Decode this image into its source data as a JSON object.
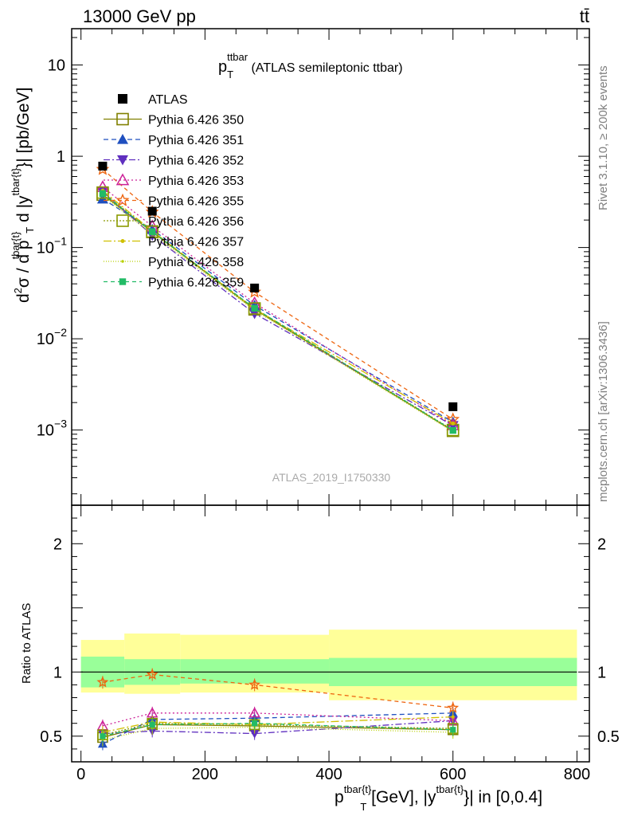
{
  "header": {
    "left": "13000 GeV pp",
    "right": "tt̄"
  },
  "side_labels": {
    "rivet": "Rivet 3.1.10, ≥ 200k events",
    "mcplots": "mcplots.cern.ch [arXiv:1306.3436]"
  },
  "title": {
    "main": "p",
    "sub": "T",
    "sup": "ttbar",
    "rest": " (ATLAS semileptonic ttbar)"
  },
  "watermark": "ATLAS_2019_I1750330",
  "ylabel_main": {
    "a": "d",
    "a_sup": "2",
    "b": "σ / d p",
    "b_sup": "tbar{t}",
    "b_sub": "T",
    "c": " d |y",
    "c_sup": "tbar{t}",
    "d": "}| [pb/GeV]"
  },
  "ylabel_ratio": "Ratio to ATLAS",
  "xlabel": {
    "a": "p",
    "a_sup": "tbar{t}",
    "a_sub": "T",
    "b": " [GeV], |y",
    "b_sup": "tbar{t}",
    "c": "}| in [0,0.4]"
  },
  "colors": {
    "data": "#000000",
    "band_inner": "#99ff99",
    "band_outer": "#ffff99"
  },
  "chart_data": {
    "type": "line",
    "title": "pT^ttbar (ATLAS semileptonic ttbar)",
    "x_bins": [
      [
        0,
        70
      ],
      [
        70,
        160
      ],
      [
        160,
        400
      ],
      [
        400,
        800
      ]
    ],
    "x_centers": [
      35,
      115,
      280,
      600
    ],
    "main_ylim": [
      0.00015,
      25
    ],
    "main_yscale": "log",
    "main_yticks": [
      {
        "value": 0.001,
        "base": "10",
        "exp": "−3"
      },
      {
        "value": 0.01,
        "base": "10",
        "exp": "−2"
      },
      {
        "value": 0.1,
        "base": "10",
        "exp": "−1"
      },
      {
        "value": 1,
        "label": "1"
      },
      {
        "value": 10,
        "label": "10"
      }
    ],
    "ratio_ylim": [
      0.3,
      2.3
    ],
    "ratio_yticks": [
      {
        "value": 0.5,
        "label": "0.5"
      },
      {
        "value": 1,
        "label": "1"
      },
      {
        "value": 2,
        "label": "2"
      }
    ],
    "xlim": [
      -15,
      820
    ],
    "xticks": [
      {
        "value": 0,
        "label": "0"
      },
      {
        "value": 200,
        "label": "200"
      },
      {
        "value": 400,
        "label": "400"
      },
      {
        "value": 600,
        "label": "600"
      },
      {
        "value": 800,
        "label": "800"
      }
    ],
    "data": {
      "name": "ATLAS",
      "values": [
        0.78,
        0.25,
        0.036,
        0.0018
      ]
    },
    "bands": {
      "inner": [
        [
          0.88,
          1.12
        ],
        [
          0.9,
          1.1
        ],
        [
          0.91,
          1.1
        ],
        [
          0.89,
          1.11
        ]
      ],
      "outer": [
        [
          0.84,
          1.25
        ],
        [
          0.83,
          1.3
        ],
        [
          0.84,
          1.29
        ],
        [
          0.78,
          1.33
        ]
      ]
    },
    "series": [
      {
        "name": "Pythia 6.426 350",
        "color": "#808000",
        "marker": "square-open",
        "dash": "",
        "values": [
          0.38,
          0.148,
          0.021,
          0.00098
        ],
        "ratio": [
          0.49,
          0.59,
          0.58,
          0.55
        ]
      },
      {
        "name": "Pythia 6.426 351",
        "color": "#1f4fbf",
        "marker": "triangle-up",
        "dash": "6,4",
        "values": [
          0.34,
          0.158,
          0.0232,
          0.00122
        ],
        "ratio": [
          0.44,
          0.63,
          0.64,
          0.68
        ]
      },
      {
        "name": "Pythia 6.426 352",
        "color": "#5f2fbf",
        "marker": "triangle-down",
        "dash": "8,3,2,3",
        "values": [
          0.41,
          0.136,
          0.0189,
          0.00112
        ],
        "ratio": [
          0.52,
          0.54,
          0.52,
          0.62
        ]
      },
      {
        "name": "Pythia 6.426 353",
        "color": "#cc2299",
        "marker": "triangle-open",
        "dash": "2,3",
        "values": [
          0.46,
          0.171,
          0.0246,
          0.00113
        ],
        "ratio": [
          0.58,
          0.68,
          0.68,
          0.62
        ]
      },
      {
        "name": "Pythia 6.426 355",
        "color": "#ee6611",
        "marker": "star-open",
        "dash": "5,4",
        "values": [
          0.72,
          0.245,
          0.0325,
          0.00131
        ],
        "ratio": [
          0.92,
          0.98,
          0.9,
          0.72
        ]
      },
      {
        "name": "Pythia 6.426 356",
        "color": "#8a9a00",
        "marker": "square-open",
        "dash": "2,2",
        "values": [
          0.4,
          0.15,
          0.0215,
          0.001
        ],
        "ratio": [
          0.51,
          0.6,
          0.59,
          0.56
        ]
      },
      {
        "name": "Pythia 6.426 357",
        "color": "#d0c000",
        "marker": "dot",
        "dash": "10,3,2,3",
        "values": [
          0.42,
          0.152,
          0.0212,
          0.00118
        ],
        "ratio": [
          0.53,
          0.61,
          0.59,
          0.65
        ]
      },
      {
        "name": "Pythia 6.426 358",
        "color": "#b8d000",
        "marker": "dot-small",
        "dash": "1,2",
        "values": [
          0.37,
          0.14,
          0.0205,
          0.00096
        ],
        "ratio": [
          0.47,
          0.56,
          0.57,
          0.53
        ]
      },
      {
        "name": "Pythia 6.426 359",
        "color": "#22bb66",
        "marker": "square-filled",
        "dash": "5,4",
        "values": [
          0.39,
          0.149,
          0.0216,
          0.00099
        ],
        "ratio": [
          0.5,
          0.59,
          0.6,
          0.55
        ]
      }
    ]
  }
}
